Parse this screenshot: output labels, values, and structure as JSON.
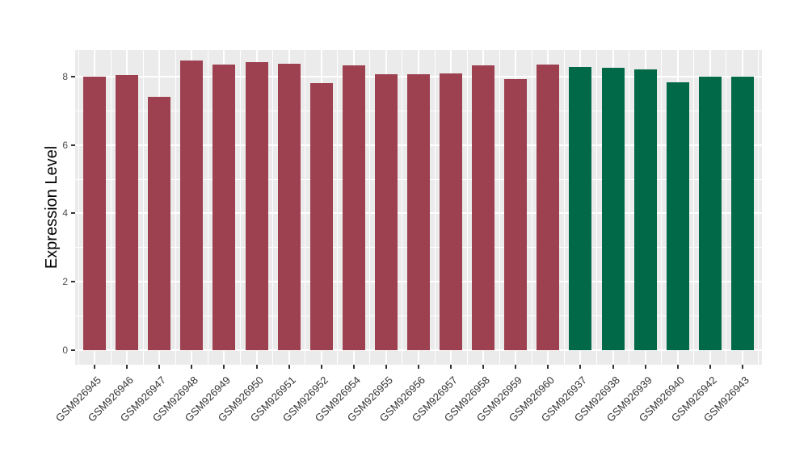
{
  "chart_data": {
    "type": "bar",
    "title": "",
    "xlabel": "",
    "ylabel": "Expression Level",
    "yticks": [
      0,
      2,
      4,
      6,
      8
    ],
    "ylim": [
      0,
      8.8
    ],
    "grid": "on",
    "legend": "none",
    "panel_bg": "#EBEBEB",
    "grid_color": "#FFFFFF",
    "colors": {
      "red": "#9D4151",
      "green": "#016948"
    },
    "bars": [
      {
        "label": "GSM926945",
        "value": 8.0,
        "color": "red"
      },
      {
        "label": "GSM926946",
        "value": 8.05,
        "color": "red"
      },
      {
        "label": "GSM926947",
        "value": 7.41,
        "color": "red"
      },
      {
        "label": "GSM926948",
        "value": 8.47,
        "color": "red"
      },
      {
        "label": "GSM926949",
        "value": 8.35,
        "color": "red"
      },
      {
        "label": "GSM926950",
        "value": 8.42,
        "color": "red"
      },
      {
        "label": "GSM926951",
        "value": 8.37,
        "color": "red"
      },
      {
        "label": "GSM926952",
        "value": 7.81,
        "color": "red"
      },
      {
        "label": "GSM926954",
        "value": 8.33,
        "color": "red"
      },
      {
        "label": "GSM926955",
        "value": 8.07,
        "color": "red"
      },
      {
        "label": "GSM926956",
        "value": 8.07,
        "color": "red"
      },
      {
        "label": "GSM926957",
        "value": 8.1,
        "color": "red"
      },
      {
        "label": "GSM926958",
        "value": 8.32,
        "color": "red"
      },
      {
        "label": "GSM926959",
        "value": 7.92,
        "color": "red"
      },
      {
        "label": "GSM926960",
        "value": 8.35,
        "color": "red"
      },
      {
        "label": "GSM926937",
        "value": 8.28,
        "color": "green"
      },
      {
        "label": "GSM926938",
        "value": 8.26,
        "color": "green"
      },
      {
        "label": "GSM926939",
        "value": 8.21,
        "color": "green"
      },
      {
        "label": "GSM926940",
        "value": 7.83,
        "color": "green"
      },
      {
        "label": "GSM926942",
        "value": 8.0,
        "color": "green"
      },
      {
        "label": "GSM926943",
        "value": 8.0,
        "color": "green"
      }
    ]
  }
}
